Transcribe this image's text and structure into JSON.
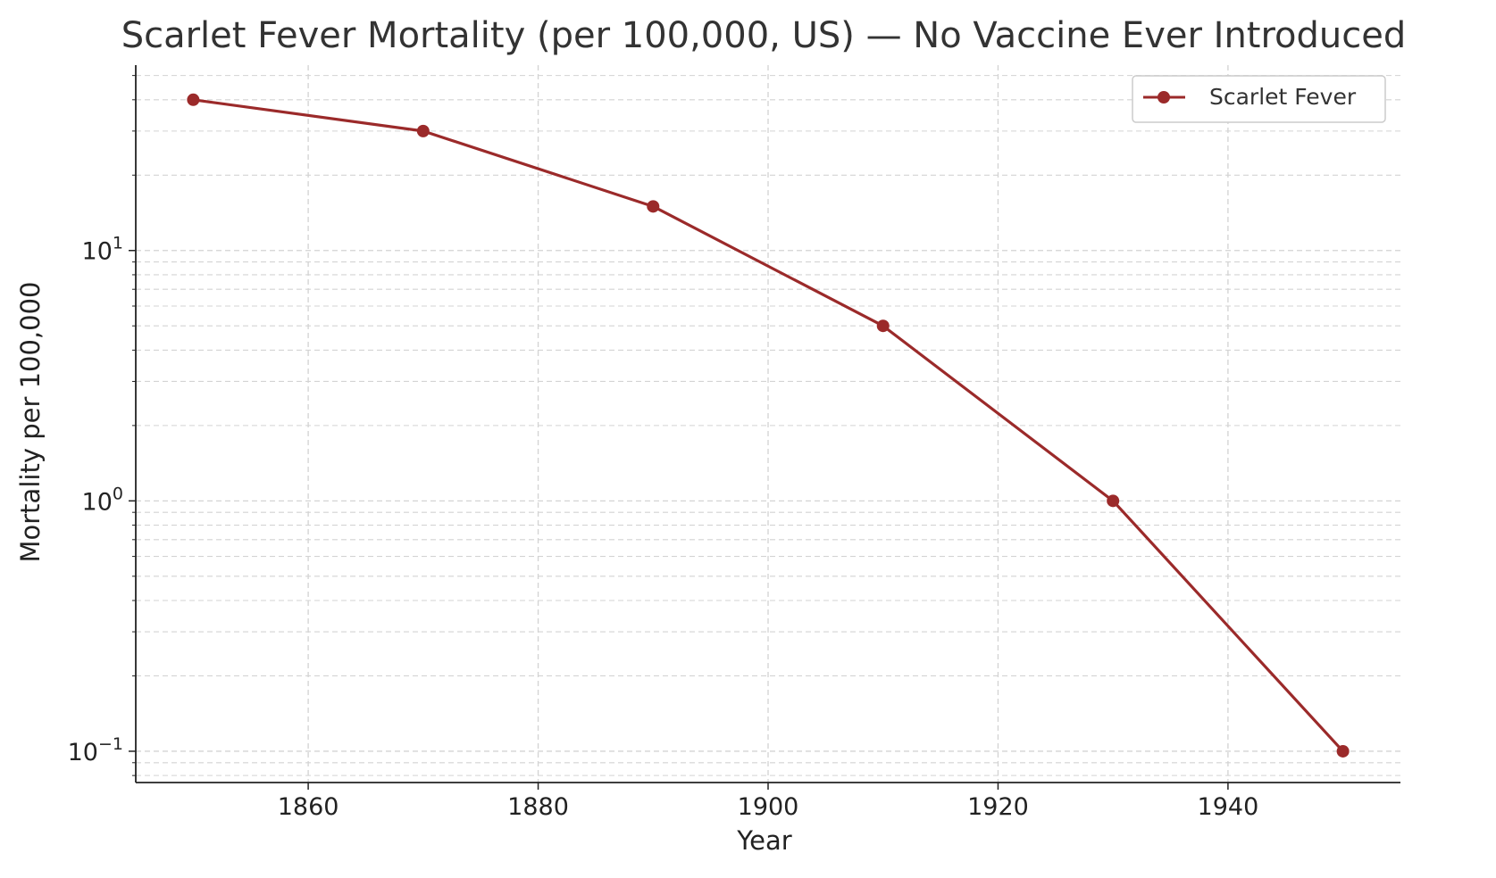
{
  "chart_data": {
    "type": "line",
    "title": "Scarlet Fever Mortality (per 100,000, US) — No Vaccine Ever Introduced",
    "xlabel": "Year",
    "ylabel": "Mortality per 100,000",
    "yscale": "log",
    "xlim": [
      1845,
      1955
    ],
    "ylim": [
      0.075,
      55
    ],
    "x_ticks": [
      1860,
      1880,
      1900,
      1920,
      1940
    ],
    "y_ticks": [
      {
        "value": 0.1,
        "base": "10",
        "exp": "−1"
      },
      {
        "value": 1,
        "base": "10",
        "exp": "0"
      },
      {
        "value": 10,
        "base": "10",
        "exp": "1"
      }
    ],
    "grid": true,
    "legend": "top-right",
    "series": [
      {
        "name": "Scarlet Fever",
        "color": "#9b2a2a",
        "marker": "circle",
        "x": [
          1850,
          1870,
          1890,
          1910,
          1930,
          1950
        ],
        "y": [
          40,
          30,
          15,
          5,
          1,
          0.1
        ]
      }
    ]
  }
}
